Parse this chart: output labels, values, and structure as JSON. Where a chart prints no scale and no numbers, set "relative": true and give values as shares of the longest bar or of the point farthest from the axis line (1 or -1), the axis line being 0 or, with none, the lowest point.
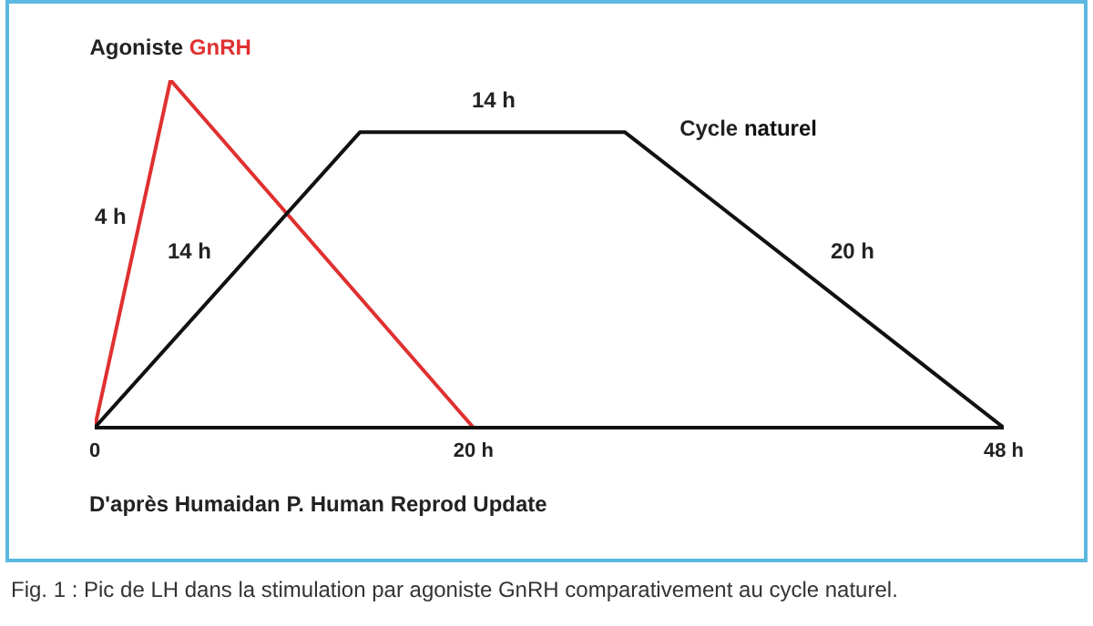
{
  "chart_data": {
    "type": "line",
    "relative": true,
    "xlim": [
      0,
      48
    ],
    "xticks": [
      0,
      {
        "value": 20,
        "label": "20 h"
      },
      {
        "value": 48,
        "label": "48 h"
      }
    ],
    "series": [
      {
        "name": "Agoniste GnRH",
        "color": "#e03030",
        "x": [
          0,
          4,
          20
        ],
        "values": [
          0,
          1,
          0
        ]
      },
      {
        "name": "Cycle naturel",
        "color": "#111111",
        "x": [
          0,
          14,
          28,
          48
        ],
        "values": [
          0,
          0.85,
          0.85,
          0
        ]
      }
    ],
    "annotations": [
      "4 h",
      "14 h",
      "14 h",
      "20 h",
      "D'après Humaidan P. Human Reprod Update",
      "Fig. 1 : Pic de LH dans la stimulation par agoniste GnRH comparativement au cycle naturel."
    ],
    "grid": false,
    "legend": false,
    "marker": "none",
    "line_style": "solid"
  }
}
